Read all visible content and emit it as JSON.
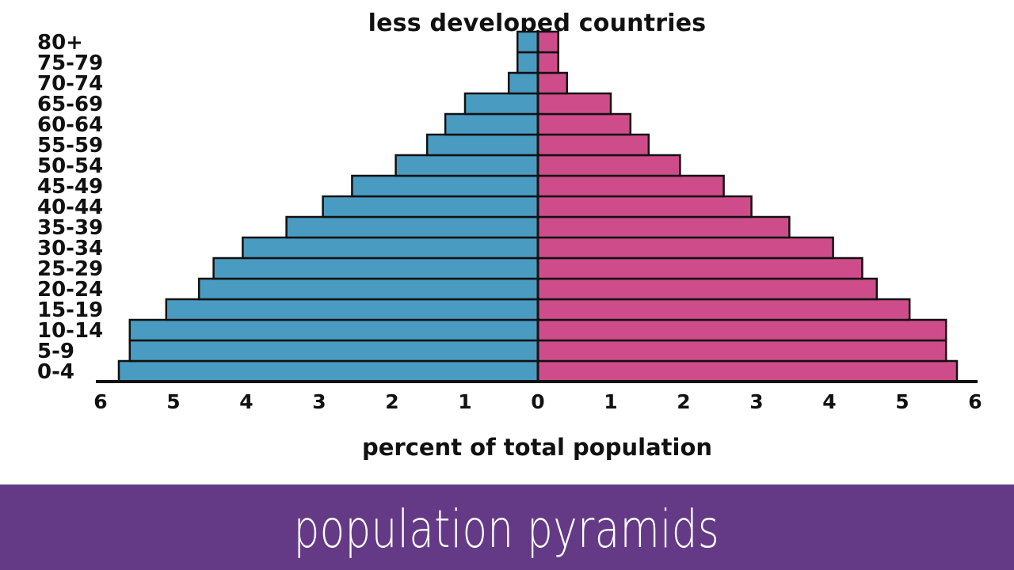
{
  "chart_data": {
    "type": "bar",
    "orientation": "horizontal",
    "layout": "population-pyramid",
    "title": "less developed countries",
    "xlabel": "percent of total population",
    "ylabel": "",
    "categories": [
      "0-4",
      "5-9",
      "10-14",
      "15-19",
      "20-24",
      "25-29",
      "30-34",
      "35-39",
      "40-44",
      "45-49",
      "50-54",
      "55-59",
      "60-64",
      "65-69",
      "70-74",
      "75-79",
      "80+"
    ],
    "series": [
      {
        "side": "left",
        "color": "#4a9bc1",
        "values": [
          5.75,
          5.6,
          5.6,
          5.1,
          4.65,
          4.45,
          4.05,
          3.45,
          2.95,
          2.55,
          1.95,
          1.52,
          1.27,
          1.0,
          0.4,
          0.28,
          0.28
        ]
      },
      {
        "side": "right",
        "color": "#cf4c8b",
        "values": [
          5.75,
          5.6,
          5.6,
          5.1,
          4.65,
          4.45,
          4.05,
          3.45,
          2.93,
          2.55,
          1.95,
          1.52,
          1.27,
          1.0,
          0.4,
          0.28,
          0.28
        ]
      }
    ],
    "xlim": [
      -6,
      6
    ],
    "xticks": [
      "6",
      "5",
      "4",
      "3",
      "2",
      "1",
      "0",
      "1",
      "2",
      "3",
      "4",
      "5",
      "6"
    ],
    "grid": false,
    "legend": "none"
  },
  "footer": {
    "title": "population pyramids",
    "background_color": "#643a86"
  }
}
